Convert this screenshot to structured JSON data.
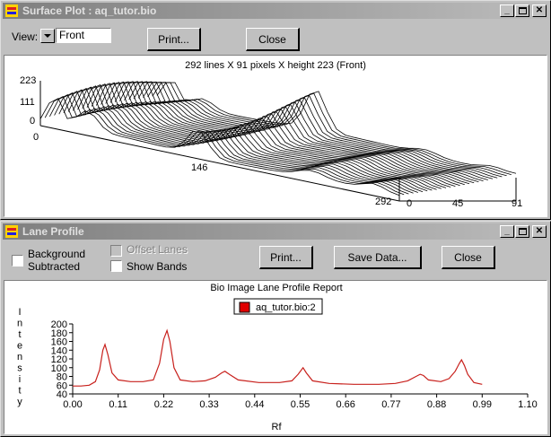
{
  "surface_window": {
    "title": "Surface Plot : aq_tutor.bio",
    "view_label": "View:",
    "view_value": "Front",
    "print_label": "Print...",
    "close_label": "Close",
    "plot_caption": "292 lines X 91 pixels X height 223 (Front)",
    "z_ticks": [
      "223",
      "111",
      "0"
    ],
    "line_ticks": [
      "0",
      "146",
      "292"
    ],
    "pixel_ticks": [
      "0",
      "45",
      "91"
    ]
  },
  "lane_window": {
    "title": "Lane Profile",
    "background_label_1": "Background",
    "background_label_2": "Subtracted",
    "offset_lanes_label": "Offset Lanes",
    "show_bands_label": "Show Bands",
    "print_label": "Print...",
    "save_label": "Save Data...",
    "close_label": "Close"
  },
  "colors": {
    "profile_line": "#c8201c",
    "legend_swatch": "#e00000"
  },
  "chart_data": {
    "type": "line",
    "title": "Bio Image Lane Profile Report",
    "xlabel": "Rf",
    "ylabel": "Intensity",
    "xlim": [
      0.0,
      1.1
    ],
    "ylim": [
      40,
      200
    ],
    "xticks": [
      "0.00",
      "0.11",
      "0.22",
      "0.33",
      "0.44",
      "0.55",
      "0.66",
      "0.77",
      "0.88",
      "0.99",
      "1.10"
    ],
    "yticks": [
      "40",
      "60",
      "80",
      "100",
      "120",
      "140",
      "160",
      "180",
      "200"
    ],
    "legend_position": "top-center",
    "series": [
      {
        "name": "aq_tutor.bio:2",
        "x": [
          0.0,
          0.02,
          0.04,
          0.055,
          0.065,
          0.073,
          0.078,
          0.085,
          0.095,
          0.11,
          0.14,
          0.17,
          0.195,
          0.21,
          0.22,
          0.228,
          0.235,
          0.245,
          0.26,
          0.29,
          0.32,
          0.345,
          0.36,
          0.368,
          0.38,
          0.4,
          0.45,
          0.5,
          0.53,
          0.545,
          0.557,
          0.565,
          0.58,
          0.62,
          0.68,
          0.74,
          0.78,
          0.81,
          0.83,
          0.84,
          0.848,
          0.86,
          0.89,
          0.91,
          0.925,
          0.935,
          0.94,
          0.947,
          0.955,
          0.97,
          0.99
        ],
        "y": [
          58,
          58,
          60,
          68,
          95,
          140,
          153,
          130,
          88,
          72,
          68,
          68,
          72,
          110,
          165,
          185,
          160,
          100,
          72,
          68,
          70,
          78,
          88,
          92,
          84,
          72,
          66,
          66,
          70,
          85,
          100,
          88,
          70,
          64,
          62,
          62,
          64,
          70,
          80,
          85,
          82,
          72,
          68,
          75,
          92,
          110,
          118,
          105,
          85,
          66,
          62
        ]
      }
    ]
  }
}
